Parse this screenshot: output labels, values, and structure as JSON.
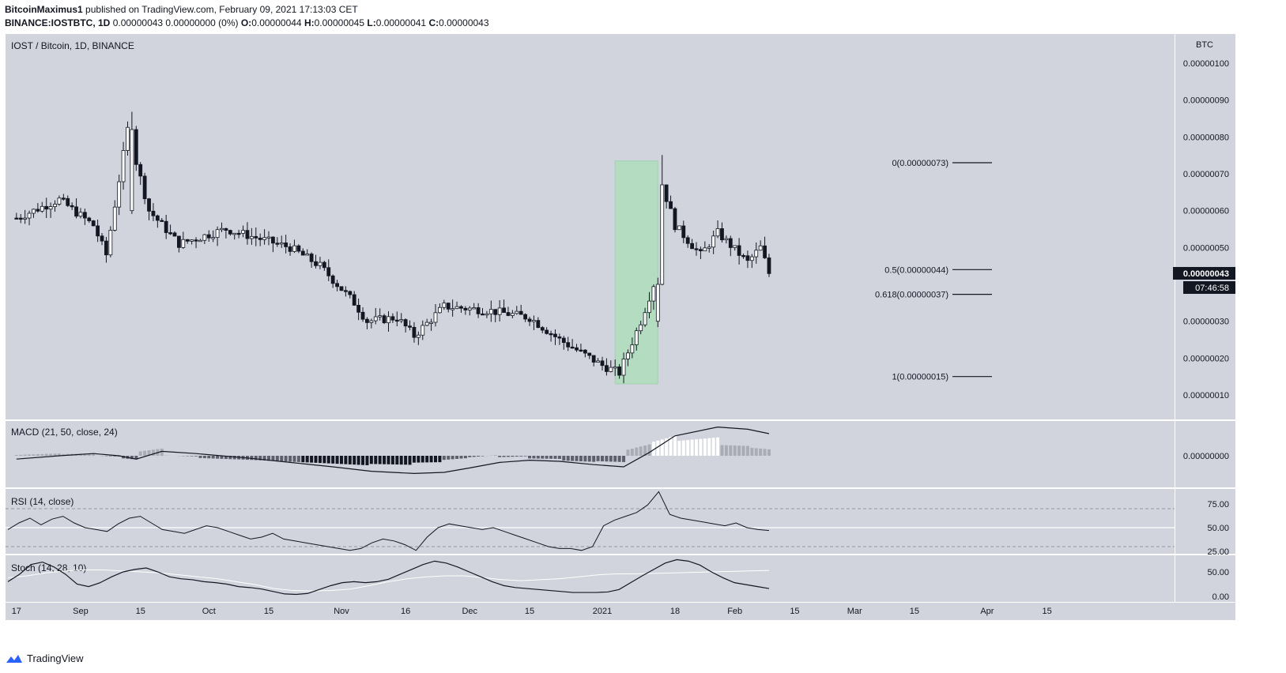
{
  "header": {
    "user": "BitcoinMaximus1",
    "published": "published on TradingView.com, February 09, 2021 17:13:03 CET",
    "symbol": "BINANCE:IOSTBTC, 1D",
    "change": "0.00000043 0.00000000 (0%)",
    "o_label": "O:",
    "o_value": "0.00000044",
    "h_label": "H:",
    "h_value": "0.00000045",
    "l_label": "L:",
    "l_value": "0.00000041",
    "c_label": "C:",
    "c_value": "0.00000043"
  },
  "footer": {
    "brand": "TradingView",
    "logo_icon": "tradingview-logo-icon"
  },
  "colors": {
    "background": "#d1d4dc",
    "candle_up": "#ffffff",
    "candle_down": "#131722",
    "wick": "#131722",
    "highlight": "#b3dcc0",
    "rsi_level": "#ffffff",
    "stoch_d": "#ffffff",
    "price_label_bg": "#131722"
  },
  "chart_data": {
    "type": "candlestick",
    "title": "IOST / Bitcoin, 1D, BINANCE",
    "currency": "BTC",
    "y_ticks": [
      "0.00000100",
      "0.00000090",
      "0.00000080",
      "0.00000070",
      "0.00000060",
      "0.00000050",
      "0.00000040",
      "0.00000030",
      "0.00000020",
      "0.00000010"
    ],
    "y_tick_values": [
      100,
      90,
      80,
      70,
      60,
      50,
      40,
      30,
      20,
      10
    ],
    "y_unit_scale": 1e-08,
    "ylim": [
      7,
      106
    ],
    "x_labels": [
      "17",
      "Sep",
      "15",
      "Oct",
      "15",
      "Nov",
      "16",
      "Dec",
      "15",
      "2021",
      "18",
      "Feb",
      "15",
      "Mar",
      "15",
      "Apr",
      "15"
    ],
    "x_label_dates": [
      "2020-08-17",
      "2020-09-01",
      "2020-09-15",
      "2020-10-01",
      "2020-10-15",
      "2020-11-01",
      "2020-11-16",
      "2020-12-01",
      "2020-12-15",
      "2021-01-01",
      "2021-01-18",
      "2021-02-01",
      "2021-02-15",
      "2021-03-01",
      "2021-03-15",
      "2021-04-01",
      "2021-04-15"
    ],
    "last_price": "0.00000043",
    "countdown": "07:46:58",
    "highlight_range": {
      "start": "2021-01-04",
      "end": "2021-01-14",
      "low": 13,
      "high": 73.5
    },
    "fibonacci": [
      {
        "label": "0(0.00000073)",
        "value": 73
      },
      {
        "label": "0.5(0.00000044)",
        "value": 44
      },
      {
        "label": "0.618(0.00000037)",
        "value": 37.3
      },
      {
        "label": "1(0.00000015)",
        "value": 15
      }
    ],
    "key_points": [
      {
        "date": "2020-08-17",
        "close": 58
      },
      {
        "date": "2020-08-27",
        "close": 63
      },
      {
        "date": "2020-09-04",
        "close": 56
      },
      {
        "date": "2020-09-07",
        "close": 48
      },
      {
        "date": "2020-09-12",
        "close": 82
      },
      {
        "date": "2020-09-17",
        "close": 60
      },
      {
        "date": "2020-09-24",
        "close": 51
      },
      {
        "date": "2020-10-05",
        "close": 55
      },
      {
        "date": "2020-10-20",
        "close": 50
      },
      {
        "date": "2020-10-27",
        "close": 45
      },
      {
        "date": "2020-11-04",
        "close": 35
      },
      {
        "date": "2020-11-07",
        "close": 30
      },
      {
        "date": "2020-11-14",
        "close": 31
      },
      {
        "date": "2020-11-18",
        "close": 26
      },
      {
        "date": "2020-11-25",
        "close": 34
      },
      {
        "date": "2020-12-05",
        "close": 33
      },
      {
        "date": "2020-12-15",
        "close": 31
      },
      {
        "date": "2020-12-22",
        "close": 25
      },
      {
        "date": "2021-01-01",
        "close": 18
      },
      {
        "date": "2021-01-05",
        "close": 16
      },
      {
        "date": "2021-01-10",
        "close": 30
      },
      {
        "date": "2021-01-13",
        "close": 40
      },
      {
        "date": "2021-01-15",
        "close": 67
      },
      {
        "date": "2021-01-18",
        "close": 56
      },
      {
        "date": "2021-01-24",
        "close": 48
      },
      {
        "date": "2021-01-28",
        "close": 54
      },
      {
        "date": "2021-02-04",
        "close": 46
      },
      {
        "date": "2021-02-07",
        "close": 50
      },
      {
        "date": "2021-02-09",
        "close": 43
      }
    ],
    "indicators": {
      "macd": {
        "label": "MACD (21, 50, close, 24)",
        "y_ticks": [
          "0.00000000"
        ],
        "line": [
          -0.3,
          0.0,
          0.2,
          0.1,
          0.0,
          -0.3,
          0.4,
          0.2,
          -0.2,
          -0.6,
          -1.0,
          -1.4,
          -1.6,
          -1.5,
          -1.1,
          -0.6,
          -0.4,
          -0.5,
          -0.8,
          -1.0,
          0.3,
          1.8,
          2.6,
          2.4,
          2.0
        ],
        "line_dates": [
          "2020-08-17",
          "2020-08-27",
          "2020-09-04",
          "2020-09-07",
          "2020-09-10",
          "2020-09-14",
          "2020-09-20",
          "2020-09-28",
          "2020-10-10",
          "2020-10-20",
          "2020-10-30",
          "2020-11-08",
          "2020-11-18",
          "2020-11-25",
          "2020-12-01",
          "2020-12-08",
          "2020-12-15",
          "2020-12-22",
          "2020-12-30",
          "2021-01-06",
          "2021-01-12",
          "2021-01-18",
          "2021-01-28",
          "2021-02-04",
          "2021-02-09"
        ]
      },
      "rsi": {
        "label": "RSI (14, close)",
        "y_ticks": [
          "75.00",
          "50.00",
          "25.00"
        ],
        "levels": [
          70,
          50,
          30
        ],
        "values": [
          48,
          55,
          60,
          53,
          59,
          62,
          55,
          50,
          48,
          46,
          54,
          60,
          62,
          55,
          48,
          46,
          44,
          48,
          52,
          50,
          46,
          42,
          38,
          40,
          44,
          38,
          36,
          34,
          32,
          30,
          28,
          26,
          28,
          34,
          38,
          36,
          32,
          26,
          40,
          50,
          54,
          52,
          50,
          48,
          50,
          46,
          42,
          38,
          34,
          30,
          28,
          28,
          26,
          30,
          52,
          58,
          62,
          66,
          74,
          88,
          64,
          60,
          58,
          56,
          54,
          52,
          55,
          50,
          48,
          47
        ],
        "start_date": "2020-08-15",
        "end_date": "2021-02-09"
      },
      "stoch": {
        "label": "Stoch (14, 28, 10)",
        "y_ticks": [
          "50.00",
          "0.00"
        ],
        "k": [
          30,
          45,
          65,
          70,
          60,
          45,
          25,
          20,
          28,
          40,
          50,
          55,
          58,
          50,
          40,
          36,
          34,
          30,
          28,
          25,
          20,
          18,
          15,
          10,
          5,
          4,
          6,
          14,
          22,
          28,
          30,
          28,
          30,
          35,
          45,
          55,
          65,
          72,
          68,
          60,
          50,
          40,
          30,
          22,
          18,
          16,
          14,
          12,
          10,
          8,
          8,
          8,
          9,
          14,
          28,
          42,
          55,
          68,
          75,
          72,
          64,
          50,
          38,
          28,
          24,
          20,
          16
        ],
        "d": [
          38,
          42,
          48,
          52,
          54,
          54,
          52,
          50,
          48,
          44,
          40,
          36,
          30,
          24,
          16,
          12,
          11,
          12,
          15,
          22,
          30,
          36,
          40,
          42,
          42,
          38,
          34,
          32,
          34,
          36,
          40,
          44,
          46,
          46,
          47,
          48,
          49,
          50,
          51,
          52,
          53
        ]
      }
    }
  }
}
